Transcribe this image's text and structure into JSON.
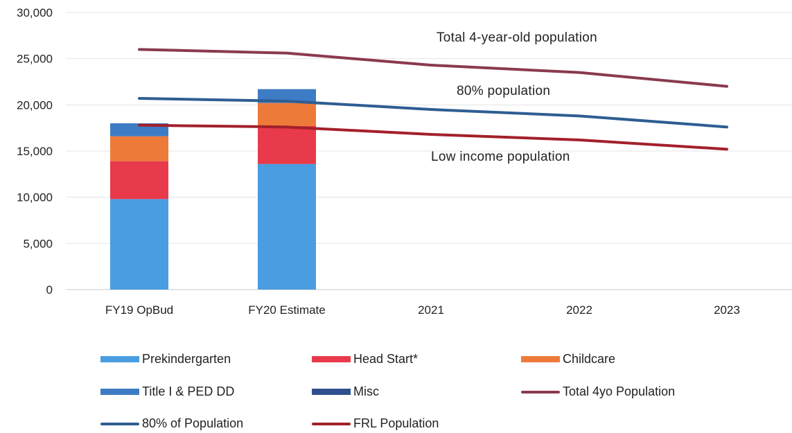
{
  "chart_data": {
    "type": "bar",
    "stacked": true,
    "categories": [
      "FY19 OpBud",
      "FY20 Estimate",
      "2021",
      "2022",
      "2023"
    ],
    "ylim": [
      0,
      30000
    ],
    "yticks": [
      "0",
      "5,000",
      "10,000",
      "15,000",
      "20,000",
      "25,000",
      "30,000"
    ],
    "grid": true,
    "series": [
      {
        "name": "Prekindergarten",
        "kind": "bar",
        "color": "#4a9de0",
        "values": [
          9800,
          13600,
          null,
          null,
          null
        ]
      },
      {
        "name": "Head Start*",
        "kind": "bar",
        "color": "#e83a4a",
        "values": [
          4100,
          4100,
          null,
          null,
          null
        ]
      },
      {
        "name": "Childcare",
        "kind": "bar",
        "color": "#ee7a3a",
        "values": [
          2700,
          2500,
          null,
          null,
          null
        ]
      },
      {
        "name": "Title I & PED DD",
        "kind": "bar",
        "color": "#3d7cc4",
        "values": [
          1400,
          1500,
          null,
          null,
          null
        ]
      },
      {
        "name": "Misc",
        "kind": "bar",
        "color": "#2f4f8f",
        "values": [
          0,
          0,
          null,
          null,
          null
        ]
      },
      {
        "name": "Total 4yo Population",
        "kind": "line",
        "color": "#8a3a4e",
        "values": [
          26000,
          25600,
          24300,
          23500,
          22000
        ]
      },
      {
        "name": "80% of Population",
        "kind": "line",
        "color": "#2e5d92",
        "values": [
          20700,
          20400,
          19500,
          18800,
          17600
        ]
      },
      {
        "name": "FRL Population",
        "kind": "line",
        "color": "#a3202a",
        "values": [
          17800,
          17600,
          16800,
          16200,
          15200
        ]
      }
    ],
    "annotations": [
      "Total 4-year-old population",
      "80% population",
      "Low income population"
    ]
  }
}
